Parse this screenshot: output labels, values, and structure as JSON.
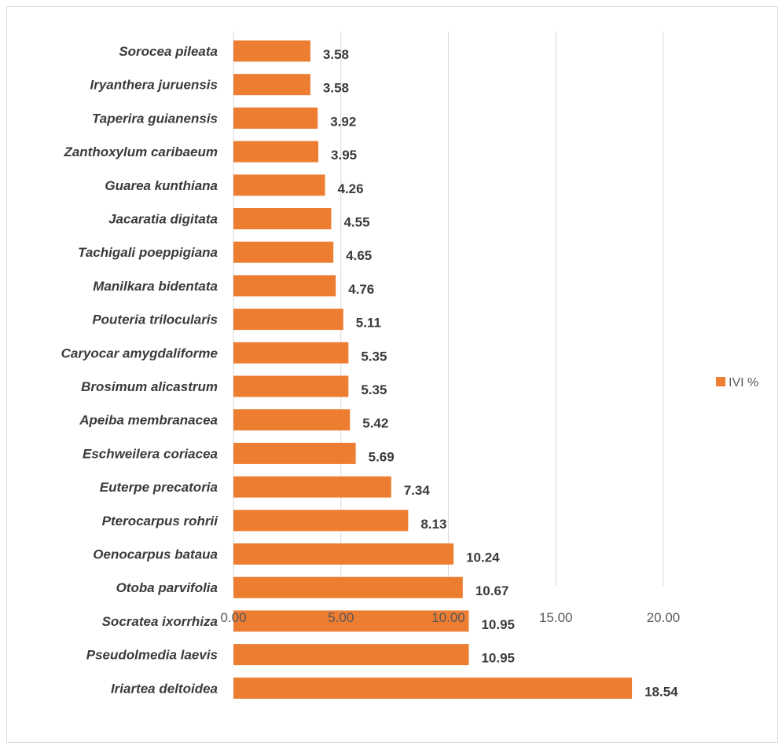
{
  "chart_data": {
    "type": "bar",
    "orientation": "horizontal",
    "categories": [
      "Sorocea pileata",
      "Iryanthera juruensis",
      "Taperira guianensis",
      "Zanthoxylum caribaeum",
      "Guarea kunthiana",
      "Jacaratia digitata",
      "Tachigali poeppigiana",
      "Manilkara bidentata",
      "Pouteria trilocularis",
      "Caryocar amygdaliforme",
      "Brosimum alicastrum",
      "Apeiba membranacea",
      "Eschweilera coriacea",
      "Euterpe precatoria",
      "Pterocarpus rohrii",
      "Oenocarpus bataua",
      "Otoba parvifolia",
      "Socratea ixorrhiza",
      "Pseudolmedia laevis",
      "Iriartea deltoidea"
    ],
    "series": [
      {
        "name": "IVI %",
        "color": "#ed7d31",
        "values": [
          3.58,
          3.58,
          3.92,
          3.95,
          4.26,
          4.55,
          4.65,
          4.76,
          5.11,
          5.35,
          5.35,
          5.42,
          5.69,
          7.34,
          8.13,
          10.24,
          10.67,
          10.95,
          10.95,
          18.54
        ],
        "value_labels": [
          "3.58",
          "3.58",
          "3.92",
          "3.95",
          "4.26",
          "4.55",
          "4.65",
          "4.76",
          "5.11",
          "5.35",
          "5.35",
          "5.42",
          "5.69",
          "7.34",
          "8.13",
          "10.24",
          "10.67",
          "10.95",
          "10.95",
          "18.54"
        ]
      }
    ],
    "x_ticks": [
      "0.00",
      "5.00",
      "10.00",
      "15.00",
      "20.00"
    ],
    "x_tick_values": [
      0,
      5,
      10,
      15,
      20
    ],
    "xlim": [
      0,
      20
    ],
    "grid": true,
    "gridline_color": "#d9d9d9",
    "legend_position": "right",
    "title": "",
    "xlabel": "",
    "ylabel": ""
  }
}
